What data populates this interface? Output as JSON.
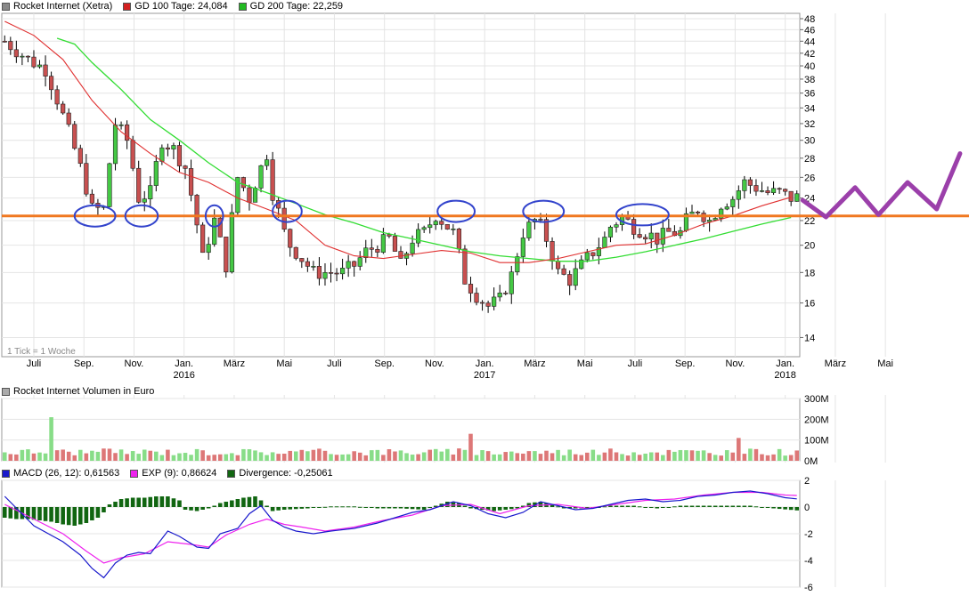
{
  "price_panel": {
    "legend": [
      {
        "label": "Rocket Internet (Xetra)",
        "color": "#888888"
      },
      {
        "label": "GD 100 Tage: 24,084",
        "color": "#d42020"
      },
      {
        "label": "GD 200 Tage: 22,259",
        "color": "#22bb22"
      }
    ],
    "tick_note": "1 Tick = 1 Woche"
  },
  "volume_panel": {
    "legend": [
      {
        "label": "Rocket Internet Volumen in Euro",
        "color": "#aaaaaa"
      }
    ]
  },
  "macd_panel": {
    "legend": [
      {
        "label": "MACD (26, 12): 0,61563",
        "color": "#1a1acc"
      },
      {
        "label": "EXP (9): 0,86624",
        "color": "#ee22ee"
      },
      {
        "label": "Divergence: -0,25061",
        "color": "#116611"
      }
    ]
  },
  "colors": {
    "up": "#44c844",
    "down": "#c85050",
    "ma100": "#e03030",
    "ma200": "#33dd33",
    "support": "#f07820",
    "circles": "#3344cc",
    "projection": "#9b3faa",
    "macd": "#1a1acc",
    "signal": "#ee22ee",
    "divergence": "#116611",
    "grid": "#e4e4e4"
  },
  "chart_data": [
    {
      "type": "candlestick",
      "title": "Rocket Internet (Xetra)",
      "interval": "weekly",
      "x_labels": [
        "Juli",
        "Sep.",
        "Nov.",
        "Jan.",
        "März",
        "Mai",
        "Juli",
        "Sep.",
        "Nov.",
        "Jan.",
        "März",
        "Mai",
        "Juli",
        "Sep.",
        "Nov.",
        "Jan.",
        "März",
        "Mai"
      ],
      "year_labels": [
        {
          "label": "2016",
          "under": "Jan."
        },
        {
          "label": "2017",
          "under": "Jan."
        },
        {
          "label": "2018",
          "under": "Jan."
        }
      ],
      "y_scale": "log",
      "y_ticks": [
        14,
        16,
        18,
        20,
        22,
        24,
        26,
        28,
        30,
        32,
        34,
        36,
        38,
        40,
        42,
        44,
        46,
        48
      ],
      "ylim": [
        13,
        49
      ],
      "close_path": [
        [
          0,
          44
        ],
        [
          4,
          41
        ],
        [
          7,
          39.5
        ],
        [
          10,
          33
        ],
        [
          13,
          27
        ],
        [
          15,
          23
        ],
        [
          17,
          23
        ],
        [
          19,
          32
        ],
        [
          21,
          30
        ],
        [
          23,
          24
        ],
        [
          25,
          24.5
        ],
        [
          27,
          30
        ],
        [
          29,
          29
        ],
        [
          31,
          27
        ],
        [
          34,
          19
        ],
        [
          36,
          22
        ],
        [
          38,
          18.5
        ],
        [
          40,
          26
        ],
        [
          42,
          24
        ],
        [
          44,
          27
        ],
        [
          45,
          28.5
        ],
        [
          46,
          24.5
        ],
        [
          48,
          21
        ],
        [
          49,
          20
        ],
        [
          51,
          19
        ],
        [
          53,
          18
        ],
        [
          56,
          18
        ],
        [
          58,
          18
        ],
        [
          60,
          18.5
        ],
        [
          62,
          19.5
        ],
        [
          64,
          20
        ],
        [
          66,
          20.5
        ],
        [
          68,
          18.5
        ],
        [
          70,
          20.5
        ],
        [
          72,
          21
        ],
        [
          74,
          22.5
        ],
        [
          75,
          22
        ],
        [
          77,
          21
        ],
        [
          79,
          17.5
        ],
        [
          81,
          16.5
        ],
        [
          83,
          15.8
        ],
        [
          85,
          16.2
        ],
        [
          87,
          17.8
        ],
        [
          89,
          21
        ],
        [
          91,
          22
        ],
        [
          92,
          21.5
        ],
        [
          93,
          20.5
        ],
        [
          95,
          18
        ],
        [
          97,
          17.5
        ],
        [
          99,
          18.5
        ],
        [
          101,
          19.5
        ],
        [
          103,
          20.5
        ],
        [
          104,
          21.5
        ],
        [
          106,
          22.3
        ],
        [
          108,
          21.5
        ],
        [
          110,
          21
        ],
        [
          112,
          20.5
        ],
        [
          114,
          21
        ],
        [
          116,
          21
        ],
        [
          117,
          22
        ],
        [
          119,
          23
        ],
        [
          121,
          22
        ],
        [
          123,
          23.5
        ],
        [
          125,
          24
        ],
        [
          127,
          25.5
        ],
        [
          129,
          25
        ],
        [
          131,
          24.5
        ],
        [
          133,
          24.5
        ],
        [
          135,
          24
        ],
        [
          136,
          24.08
        ]
      ],
      "ma100": [
        [
          0,
          47.5
        ],
        [
          5,
          45
        ],
        [
          10,
          41
        ],
        [
          15,
          35
        ],
        [
          20,
          31
        ],
        [
          25,
          28.5
        ],
        [
          30,
          26.5
        ],
        [
          35,
          25.5
        ],
        [
          40,
          24
        ],
        [
          45,
          23
        ],
        [
          50,
          22
        ],
        [
          55,
          20
        ],
        [
          60,
          19.2
        ],
        [
          65,
          19
        ],
        [
          70,
          19.3
        ],
        [
          75,
          19.6
        ],
        [
          80,
          19.4
        ],
        [
          85,
          18.7
        ],
        [
          90,
          18.7
        ],
        [
          95,
          19
        ],
        [
          100,
          19.5
        ],
        [
          105,
          20
        ],
        [
          110,
          20.1
        ],
        [
          115,
          20.8
        ],
        [
          120,
          21.7
        ],
        [
          125,
          22.4
        ],
        [
          130,
          23.3
        ],
        [
          135,
          24.08
        ]
      ],
      "ma200": [
        [
          9,
          44.5
        ],
        [
          12,
          43.5
        ],
        [
          15,
          40.5
        ],
        [
          20,
          36.5
        ],
        [
          25,
          32.5
        ],
        [
          30,
          30
        ],
        [
          35,
          27.5
        ],
        [
          40,
          25.5
        ],
        [
          45,
          24.5
        ],
        [
          50,
          23.5
        ],
        [
          55,
          22.5
        ],
        [
          60,
          21.8
        ],
        [
          65,
          21
        ],
        [
          70,
          20.5
        ],
        [
          75,
          20
        ],
        [
          80,
          19.5
        ],
        [
          85,
          19.2
        ],
        [
          90,
          19
        ],
        [
          95,
          18.8
        ],
        [
          100,
          18.8
        ],
        [
          105,
          19.1
        ],
        [
          110,
          19.5
        ],
        [
          115,
          20
        ],
        [
          120,
          20.5
        ],
        [
          125,
          21.1
        ],
        [
          130,
          21.7
        ],
        [
          135,
          22.259
        ]
      ],
      "support_level": 22.4,
      "circled_weeks": [
        {
          "week": 15.5,
          "level": 22.4,
          "span": 3.5
        },
        {
          "week": 23.5,
          "level": 22.4,
          "span": 2.8
        },
        {
          "week": 36,
          "level": 22.4,
          "span": 1.5
        },
        {
          "week": 48.5,
          "level": 22.8,
          "span": 2.5
        },
        {
          "week": 77.5,
          "level": 22.8,
          "span": 3.2
        },
        {
          "week": 92.5,
          "level": 22.8,
          "span": 3.5
        },
        {
          "week": 109.5,
          "level": 22.5,
          "span": 4.5
        }
      ],
      "projection": [
        [
          137,
          23.8
        ],
        [
          141,
          22.3
        ],
        [
          146,
          25
        ],
        [
          150,
          22.5
        ],
        [
          155,
          25.5
        ],
        [
          160,
          23
        ],
        [
          164,
          28.5
        ]
      ]
    },
    {
      "type": "bar",
      "title": "Rocket Internet Volumen in Euro",
      "y_ticks": [
        "0M",
        "100M",
        "200M",
        "300M"
      ],
      "ylim": [
        0,
        300
      ],
      "approx_values_by_week": [
        [
          8,
          210
        ],
        [
          80,
          130
        ],
        [
          126,
          110
        ]
      ],
      "typical_range": [
        25,
        60
      ]
    },
    {
      "type": "line",
      "title": "MACD",
      "y_ticks": [
        -6,
        -4,
        -2,
        0,
        2
      ],
      "ylim": [
        -6,
        2
      ],
      "series": [
        {
          "name": "MACD (26, 12)",
          "points": [
            [
              0,
              0.8
            ],
            [
              5,
              -1.4
            ],
            [
              10,
              -2.6
            ],
            [
              13,
              -3.6
            ],
            [
              15,
              -4.6
            ],
            [
              17,
              -5.3
            ],
            [
              19,
              -4.2
            ],
            [
              21,
              -3.6
            ],
            [
              23,
              -3.4
            ],
            [
              25,
              -3.5
            ],
            [
              28,
              -1.8
            ],
            [
              30,
              -2.2
            ],
            [
              33,
              -3.0
            ],
            [
              35,
              -3.1
            ],
            [
              37,
              -2.0
            ],
            [
              40,
              -1.6
            ],
            [
              42,
              -0.5
            ],
            [
              44,
              0.1
            ],
            [
              46,
              -1.0
            ],
            [
              48,
              -1.5
            ],
            [
              50,
              -1.8
            ],
            [
              53,
              -2.0
            ],
            [
              56,
              -1.8
            ],
            [
              60,
              -1.6
            ],
            [
              64,
              -1.2
            ],
            [
              67,
              -0.8
            ],
            [
              70,
              -0.4
            ],
            [
              73,
              -0.2
            ],
            [
              77,
              0.4
            ],
            [
              80,
              0.1
            ],
            [
              83,
              -0.5
            ],
            [
              86,
              -0.8
            ],
            [
              89,
              -0.4
            ],
            [
              92,
              0.4
            ],
            [
              95,
              0.1
            ],
            [
              98,
              -0.2
            ],
            [
              101,
              -0.1
            ],
            [
              104,
              0.2
            ],
            [
              107,
              0.5
            ],
            [
              110,
              0.6
            ],
            [
              113,
              0.4
            ],
            [
              116,
              0.5
            ],
            [
              119,
              0.8
            ],
            [
              122,
              0.9
            ],
            [
              125,
              1.1
            ],
            [
              128,
              1.2
            ],
            [
              131,
              1.0
            ],
            [
              134,
              0.7
            ],
            [
              136,
              0.61563
            ]
          ]
        },
        {
          "name": "EXP (9)",
          "points": [
            [
              0,
              0.2
            ],
            [
              5,
              -0.9
            ],
            [
              10,
              -2.0
            ],
            [
              14,
              -3.3
            ],
            [
              17,
              -4.2
            ],
            [
              20,
              -3.8
            ],
            [
              24,
              -3.5
            ],
            [
              28,
              -2.6
            ],
            [
              32,
              -2.8
            ],
            [
              35,
              -3.0
            ],
            [
              38,
              -2.1
            ],
            [
              42,
              -1.3
            ],
            [
              45,
              -0.9
            ],
            [
              48,
              -1.3
            ],
            [
              51,
              -1.5
            ],
            [
              55,
              -1.8
            ],
            [
              60,
              -1.5
            ],
            [
              65,
              -1.0
            ],
            [
              70,
              -0.6
            ],
            [
              75,
              0.1
            ],
            [
              80,
              0.2
            ],
            [
              85,
              -0.5
            ],
            [
              90,
              0.1
            ],
            [
              95,
              0.2
            ],
            [
              100,
              -0.1
            ],
            [
              105,
              0.2
            ],
            [
              110,
              0.5
            ],
            [
              115,
              0.6
            ],
            [
              120,
              0.9
            ],
            [
              125,
              1.1
            ],
            [
              130,
              1.1
            ],
            [
              134,
              0.9
            ],
            [
              136,
              0.86624
            ]
          ]
        }
      ],
      "divergence_bars": [
        [
          0,
          -0.8
        ],
        [
          2,
          -0.9
        ],
        [
          4,
          -0.9
        ],
        [
          6,
          -1.0
        ],
        [
          8,
          -1.1
        ],
        [
          10,
          -1.3
        ],
        [
          12,
          -1.4
        ],
        [
          14,
          -1.2
        ],
        [
          16,
          -0.8
        ],
        [
          17,
          -0.4
        ],
        [
          18,
          0.2
        ],
        [
          20,
          0.6
        ],
        [
          22,
          0.7
        ],
        [
          24,
          0.7
        ],
        [
          26,
          0.8
        ],
        [
          28,
          0.8
        ],
        [
          30,
          0.5
        ],
        [
          31,
          -0.2
        ],
        [
          33,
          -0.3
        ],
        [
          35,
          -0.1
        ],
        [
          37,
          0.3
        ],
        [
          39,
          0.5
        ],
        [
          41,
          0.7
        ],
        [
          43,
          0.8
        ],
        [
          44,
          0.5
        ],
        [
          46,
          -0.3
        ],
        [
          48,
          -0.2
        ],
        [
          52,
          -0.1
        ],
        [
          56,
          0.05
        ],
        [
          60,
          0.05
        ],
        [
          64,
          -0.1
        ],
        [
          68,
          -0.1
        ],
        [
          72,
          -0.2
        ],
        [
          76,
          0.4
        ],
        [
          78,
          0.3
        ],
        [
          80,
          -0.1
        ],
        [
          84,
          -0.3
        ],
        [
          88,
          -0.1
        ],
        [
          90,
          0.3
        ],
        [
          92,
          0.4
        ],
        [
          94,
          0.2
        ],
        [
          96,
          -0.1
        ],
        [
          100,
          -0.1
        ],
        [
          104,
          0.1
        ],
        [
          108,
          0.1
        ],
        [
          112,
          -0.1
        ],
        [
          116,
          0.1
        ],
        [
          120,
          0.1
        ],
        [
          124,
          0.1
        ],
        [
          128,
          0.1
        ],
        [
          132,
          -0.1
        ],
        [
          136,
          -0.25061
        ]
      ]
    }
  ]
}
